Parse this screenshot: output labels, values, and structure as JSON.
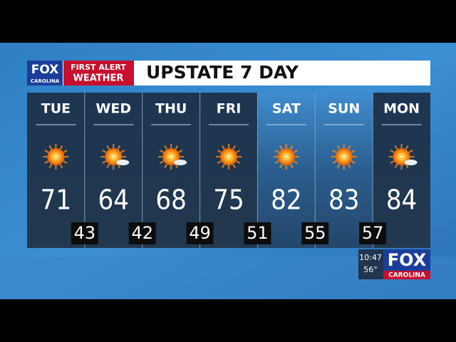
{
  "header": {
    "logo": {
      "brand": "FOX",
      "station": "CAROLINA",
      "line1": "FIRST ALERT",
      "line2": "WEATHER"
    },
    "title": "UPSTATE 7 DAY"
  },
  "days": [
    {
      "name": "TUE",
      "high": 71
    },
    {
      "name": "WED",
      "high": 64
    },
    {
      "name": "THU",
      "high": 68
    },
    {
      "name": "FRI",
      "high": 75
    },
    {
      "name": "SAT",
      "high": 82
    },
    {
      "name": "SUN",
      "high": 83
    },
    {
      "name": "MON",
      "high": 84
    }
  ],
  "lows": [
    43,
    42,
    49,
    51,
    55,
    57
  ],
  "bug": {
    "time": "10:47",
    "temperature": "56°",
    "brand": "FOX",
    "station": "CAROLINA"
  }
}
